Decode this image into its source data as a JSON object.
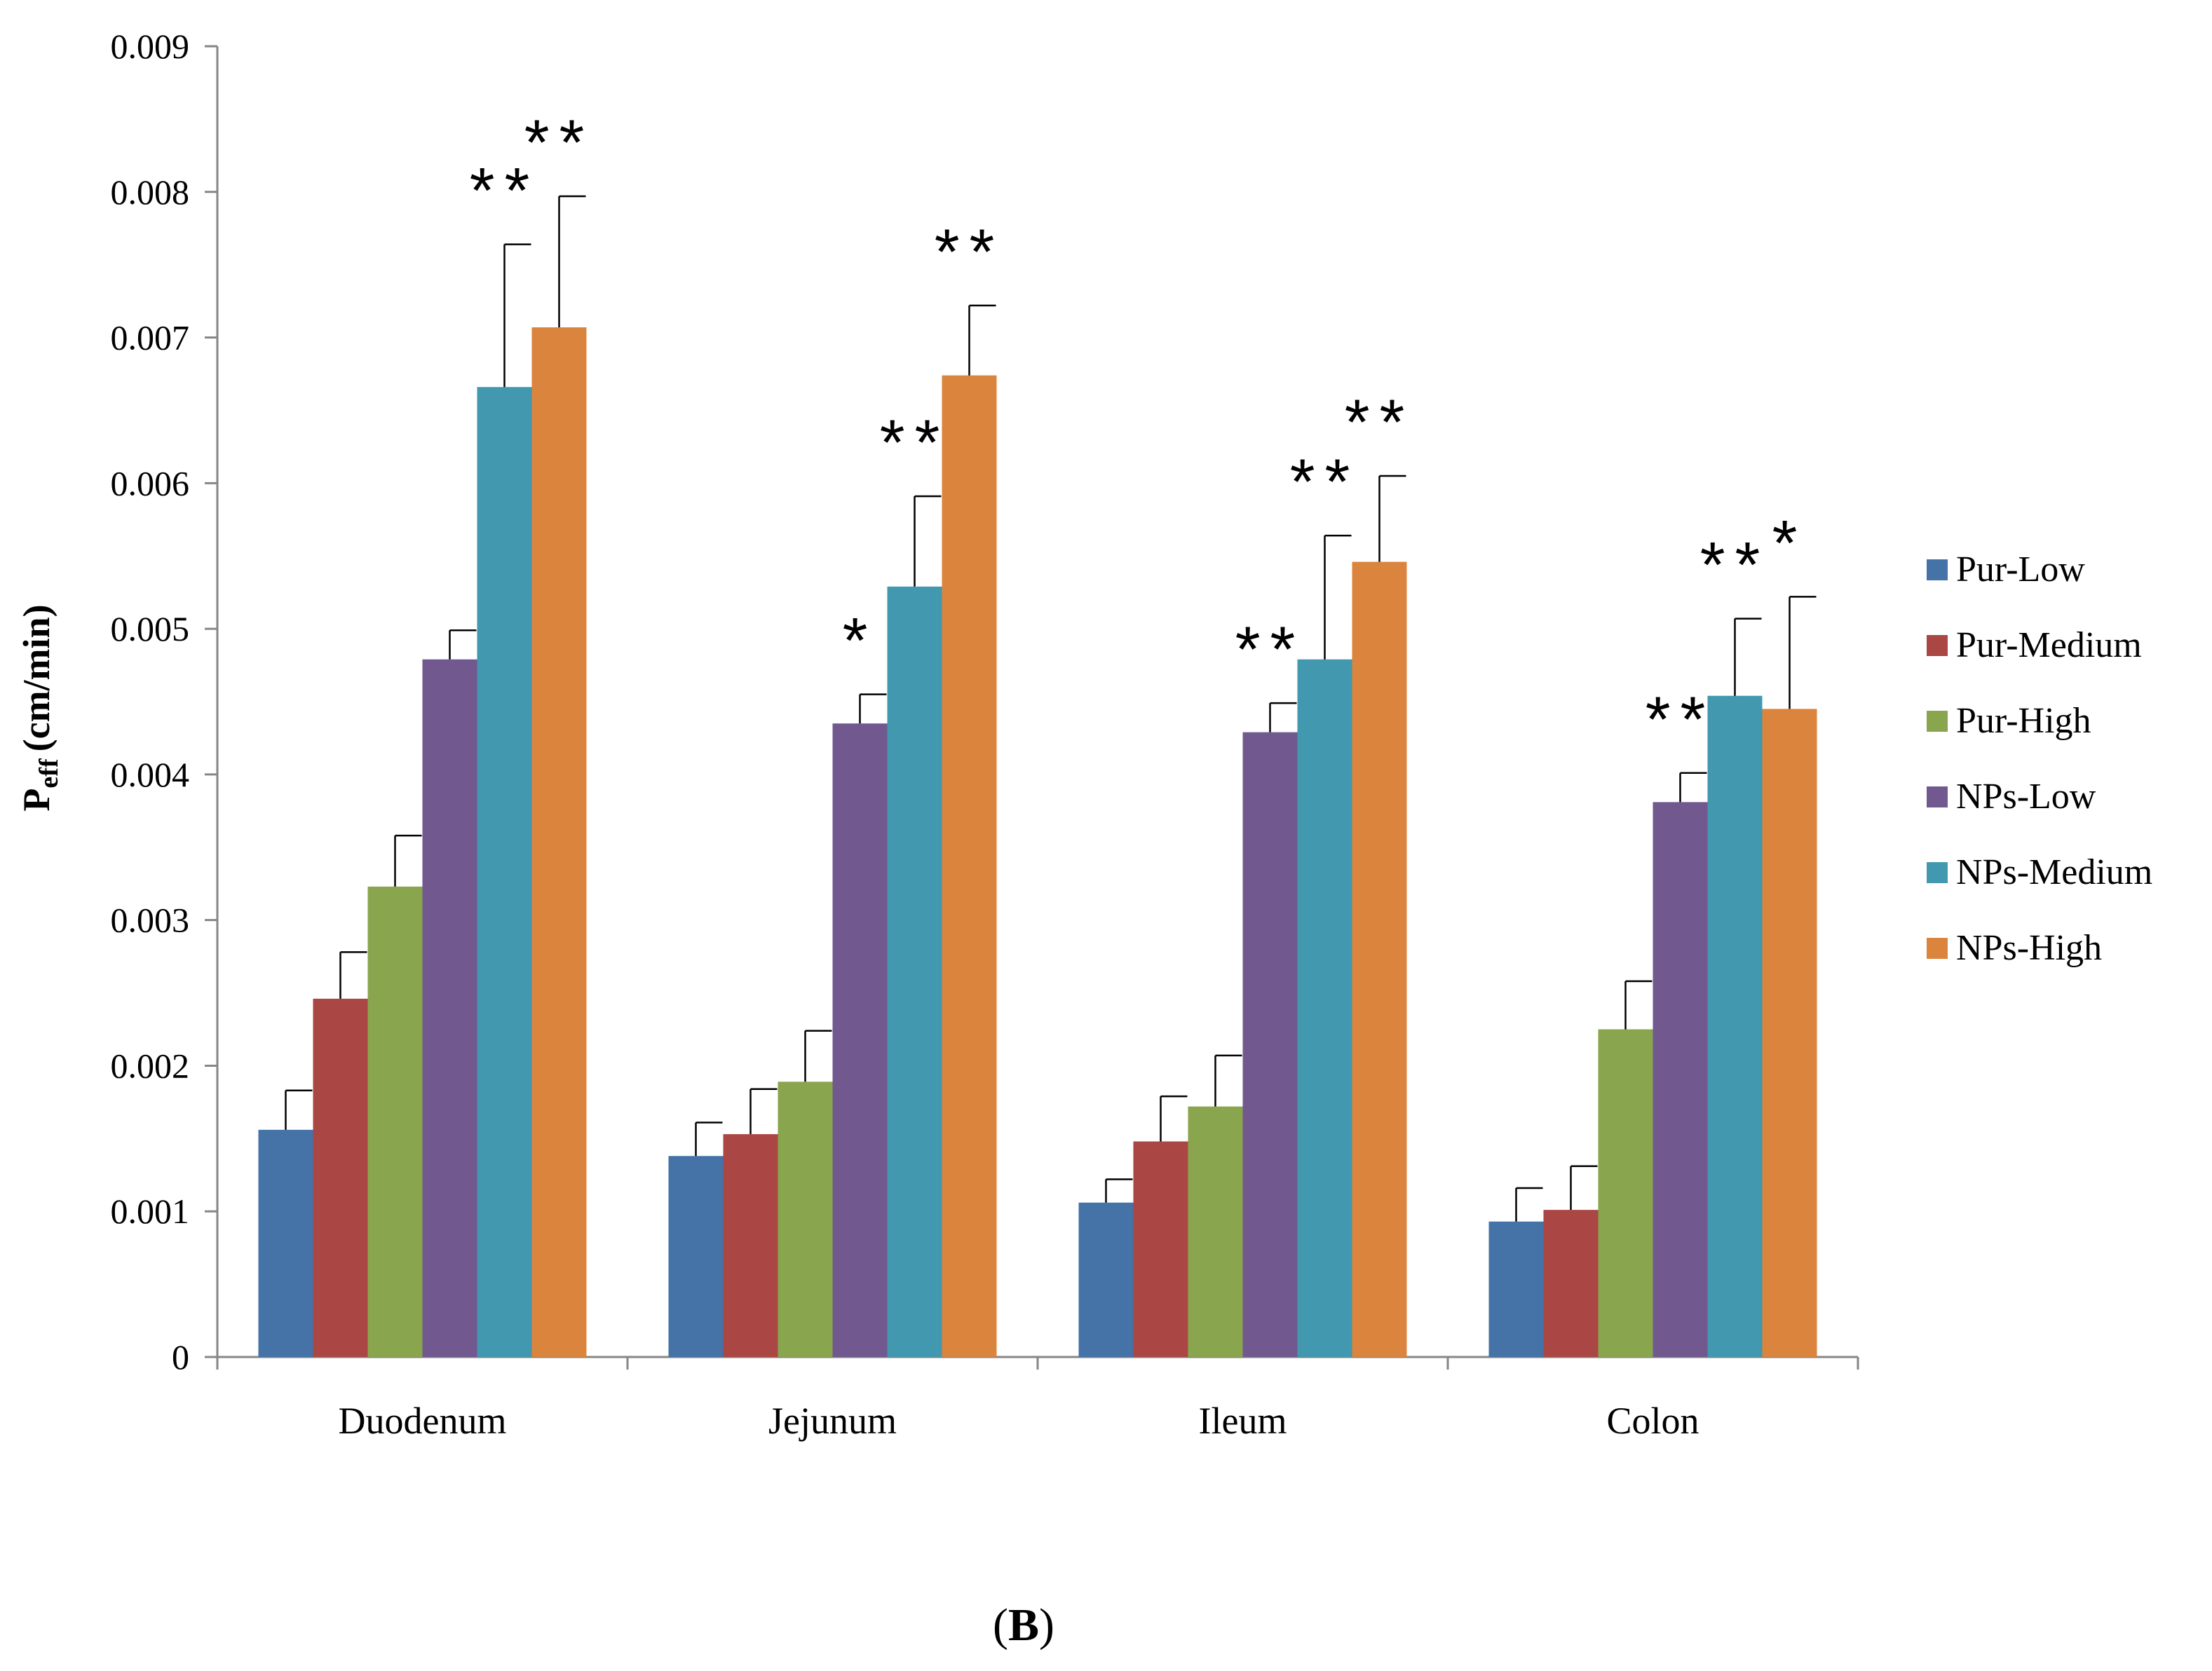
{
  "chart_data": {
    "type": "bar",
    "title": "",
    "xlabel": "",
    "ylabel": {
      "main": "P",
      "subscript": "eff",
      "unit": "(cm/min)"
    },
    "ylim": [
      0,
      0.009
    ],
    "yticks": [
      "0",
      "0.001",
      "0.002",
      "0.003",
      "0.004",
      "0.005",
      "0.006",
      "0.007",
      "0.008",
      "0.009"
    ],
    "categories": [
      "Duodenum",
      "Jejunum",
      "Ileum",
      "Colon"
    ],
    "series": [
      {
        "name": "Pur-Low",
        "color": "#4572A7",
        "values": [
          0.00156,
          0.00138,
          0.00106,
          0.00093
        ],
        "errors": [
          0.00027,
          0.00023,
          0.00016,
          0.00023
        ],
        "sig": [
          "",
          "",
          "",
          ""
        ]
      },
      {
        "name": "Pur-Medium",
        "color": "#AA4643",
        "values": [
          0.00246,
          0.00153,
          0.00148,
          0.00101
        ],
        "errors": [
          0.00032,
          0.00031,
          0.00031,
          0.0003
        ],
        "sig": [
          "",
          "",
          "",
          ""
        ]
      },
      {
        "name": "Pur-High",
        "color": "#89A54E",
        "values": [
          0.00323,
          0.00189,
          0.00172,
          0.00225
        ],
        "errors": [
          0.00035,
          0.00035,
          0.00035,
          0.00033
        ],
        "sig": [
          "",
          "",
          "",
          ""
        ]
      },
      {
        "name": "NPs-Low",
        "color": "#71588F",
        "values": [
          0.00479,
          0.00435,
          0.00429,
          0.00381
        ],
        "errors": [
          0.0002,
          0.0002,
          0.0002,
          0.0002
        ],
        "sig": [
          "",
          "*",
          "**",
          "**"
        ]
      },
      {
        "name": "NPs-Medium",
        "color": "#4198AF",
        "values": [
          0.00666,
          0.00529,
          0.00479,
          0.00454
        ],
        "errors": [
          0.00098,
          0.00062,
          0.00085,
          0.00053
        ],
        "sig": [
          "**",
          "**",
          "**",
          "**"
        ]
      },
      {
        "name": "NPs-High",
        "color": "#DB843D",
        "values": [
          0.00707,
          0.00674,
          0.00546,
          0.00445
        ],
        "errors": [
          0.0009,
          0.00048,
          0.00059,
          0.00077
        ],
        "sig": [
          "**",
          "**",
          "**",
          "*"
        ]
      }
    ],
    "legend_position": "right",
    "grid": false
  },
  "panel_label": "B"
}
